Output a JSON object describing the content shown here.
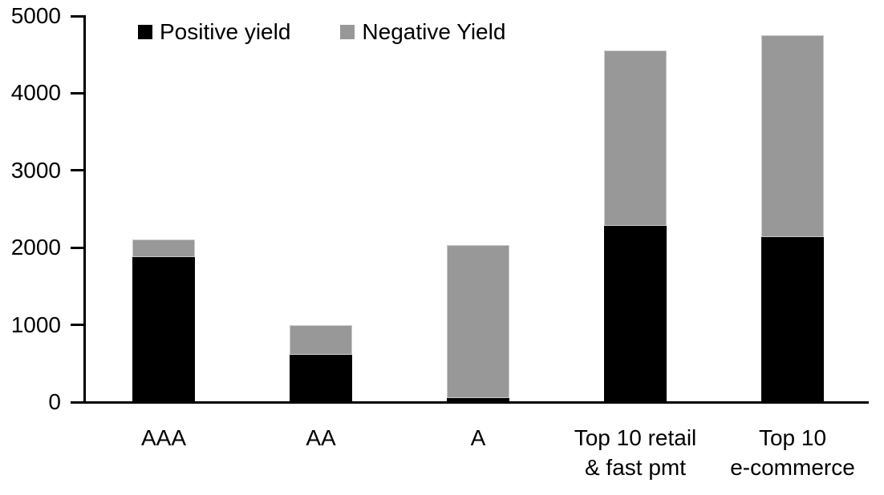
{
  "chart_data": {
    "type": "bar",
    "stacked": true,
    "title": "",
    "categories": [
      "AAA",
      "AA",
      "A",
      "Top 10 retail\n& fast pmt",
      "Top 10\ne-commerce"
    ],
    "series": [
      {
        "name": "Positive yield",
        "color": "#000000",
        "values": [
          1880,
          610,
          50,
          2280,
          2140
        ]
      },
      {
        "name": "Negative Yield",
        "color": "#989898",
        "values": [
          230,
          390,
          1980,
          2270,
          2610
        ]
      }
    ],
    "totals": [
      2110,
      1000,
      2030,
      4550,
      4750
    ],
    "ylim": [
      0,
      5000
    ],
    "yticks": [
      0,
      1000,
      2000,
      3000,
      4000,
      5000
    ],
    "legend_position": "top",
    "grid": false,
    "axis_color": "#000000",
    "background": "#ffffff"
  }
}
